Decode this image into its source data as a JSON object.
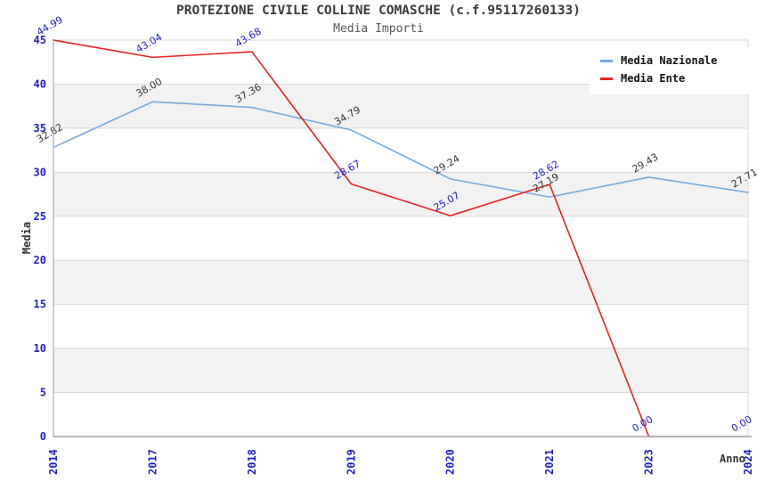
{
  "chart_data": {
    "type": "line",
    "title": "PROTEZIONE CIVILE COLLINE COMASCHE (c.f.95117260133)",
    "subtitle": "Media Importi",
    "xlabel": "Anno",
    "ylabel": "Media",
    "categories": [
      "2014",
      "2017",
      "2018",
      "2019",
      "2020",
      "2021",
      "2023",
      "2024"
    ],
    "series": [
      {
        "name": "Media Nazionale",
        "color": "#74aadc",
        "label_color": "#333333",
        "values": [
          32.82,
          38.0,
          37.36,
          34.79,
          29.24,
          27.19,
          29.43,
          27.71
        ]
      },
      {
        "name": "Media Ente",
        "color": "#e62222",
        "label_color": "#2020cc",
        "values": [
          44.99,
          43.04,
          43.68,
          28.67,
          25.07,
          28.62,
          0.0,
          0.0
        ]
      }
    ],
    "ylim": [
      0,
      45
    ],
    "ytick_step": 5,
    "grid": true,
    "legend_position": "top-right",
    "value_label_decimals": 2,
    "colors": {
      "tick_label": "#2020cc",
      "band": "#f2f2f2",
      "gridline": "#d9d9d9",
      "axis_line": "#b0b0b0"
    }
  }
}
